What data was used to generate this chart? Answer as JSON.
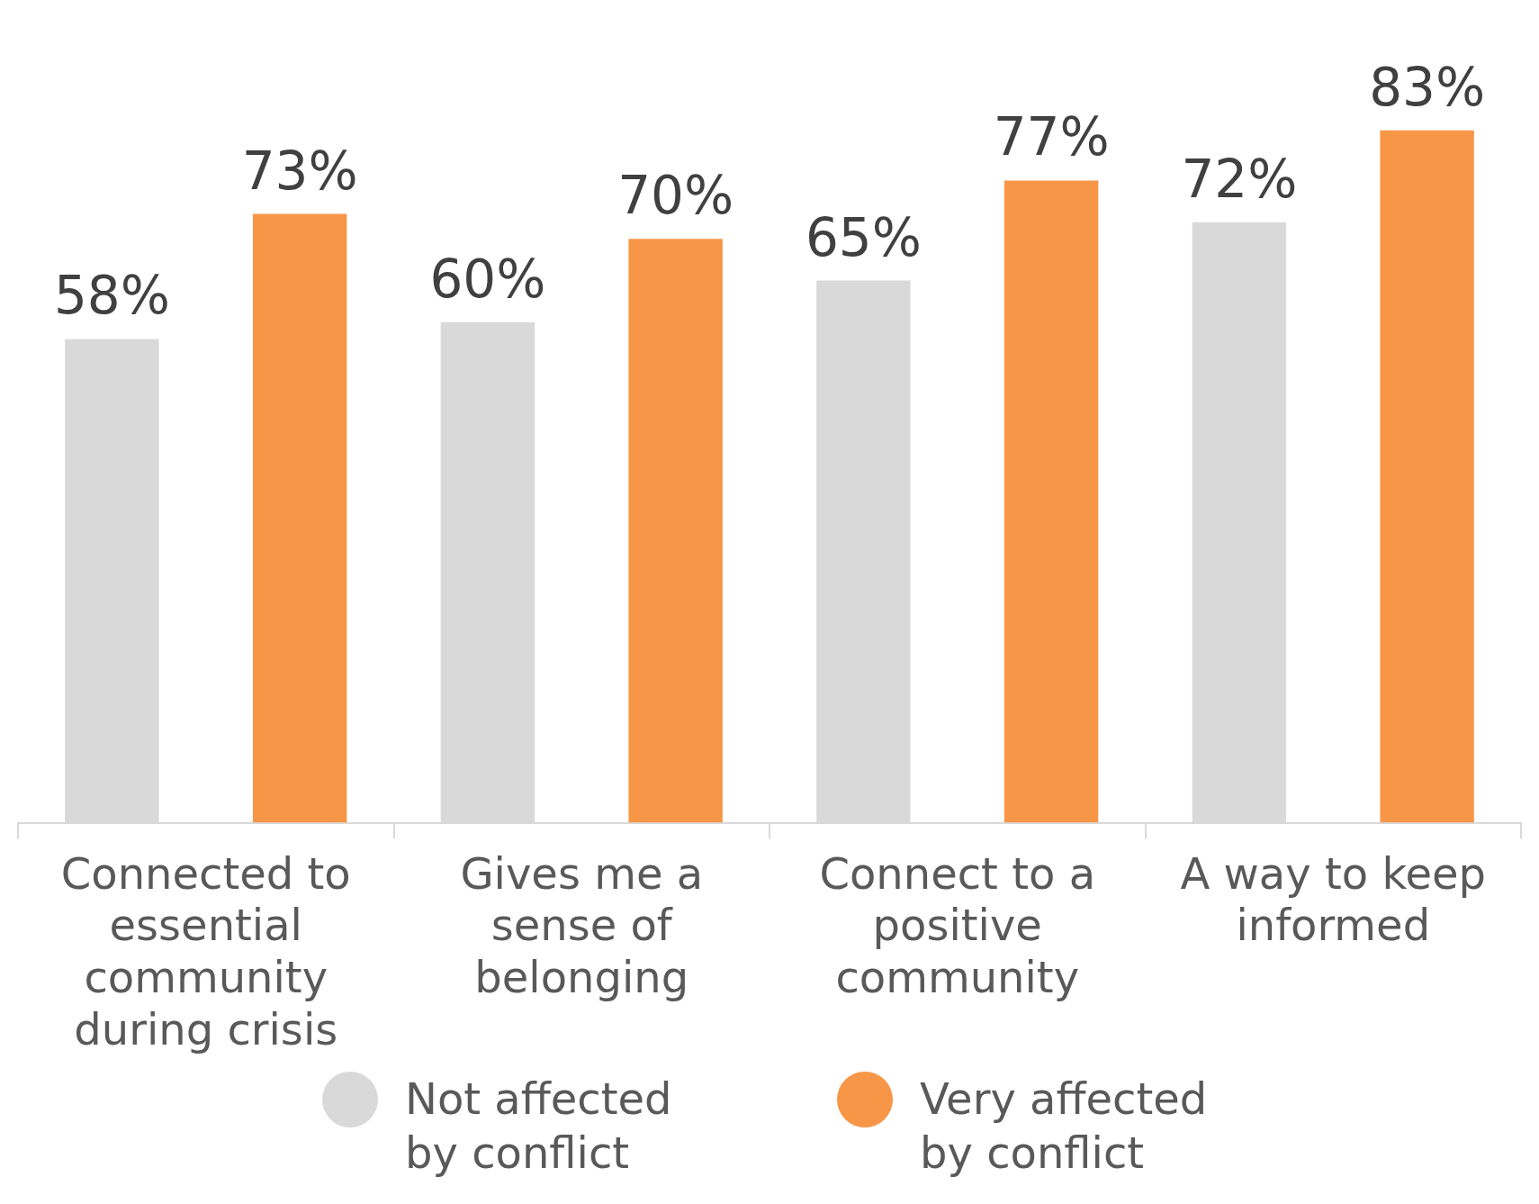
{
  "chart_data": {
    "type": "bar",
    "categories": [
      "Connected to essential community during crisis",
      "Gives me a sense of belonging",
      "Connect to a positive community",
      "A way to keep informed"
    ],
    "series": [
      {
        "name": "Not affected by conflict",
        "color": "#d9d9d9",
        "values": [
          58,
          60,
          65,
          72
        ],
        "value_labels": [
          "58%",
          "60%",
          "65%",
          "72%"
        ]
      },
      {
        "name": "Very affected by conflict",
        "color": "#f79646",
        "values": [
          73,
          70,
          77,
          83
        ],
        "value_labels": [
          "73%",
          "70%",
          "77%",
          "83%"
        ]
      }
    ],
    "legend": "bottom",
    "tick_labels": "x"
  }
}
